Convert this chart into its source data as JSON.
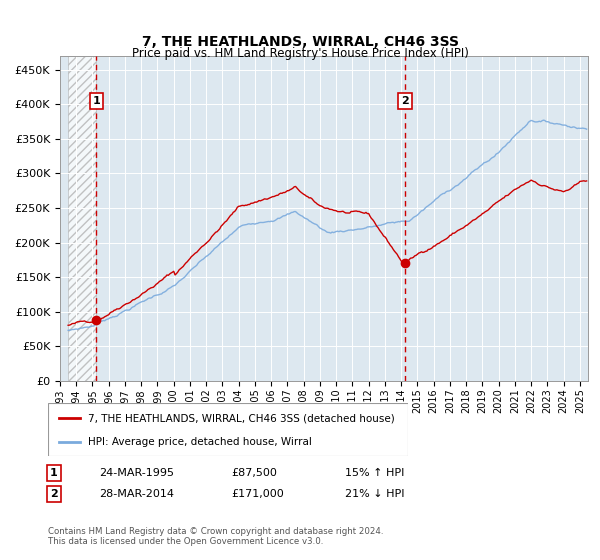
{
  "title": "7, THE HEATHLANDS, WIRRAL, CH46 3SS",
  "subtitle": "Price paid vs. HM Land Registry's House Price Index (HPI)",
  "ylim": [
    0,
    470000
  ],
  "yticks": [
    0,
    50000,
    100000,
    150000,
    200000,
    250000,
    300000,
    350000,
    400000,
    450000
  ],
  "ytick_labels": [
    "£0",
    "£50K",
    "£100K",
    "£150K",
    "£200K",
    "£250K",
    "£300K",
    "£350K",
    "£400K",
    "£450K"
  ],
  "sale1_date": 1995.23,
  "sale1_price": 87500,
  "sale2_date": 2014.23,
  "sale2_price": 171000,
  "hpi_color": "#7aaadd",
  "price_color": "#cc0000",
  "dashed_color": "#cc0000",
  "legend_label1": "7, THE HEATHLANDS, WIRRAL, CH46 3SS (detached house)",
  "legend_label2": "HPI: Average price, detached house, Wirral",
  "footer": "Contains HM Land Registry data © Crown copyright and database right 2024.\nThis data is licensed under the Open Government Licence v3.0.",
  "table_row1": [
    "1",
    "24-MAR-1995",
    "£87,500",
    "15% ↑ HPI"
  ],
  "table_row2": [
    "2",
    "28-MAR-2014",
    "£171,000",
    "21% ↓ HPI"
  ],
  "background_color": "#dde8f0",
  "hatch_region_end": 1995.23,
  "xlim_start": 1993.5,
  "xlim_end": 2025.5
}
